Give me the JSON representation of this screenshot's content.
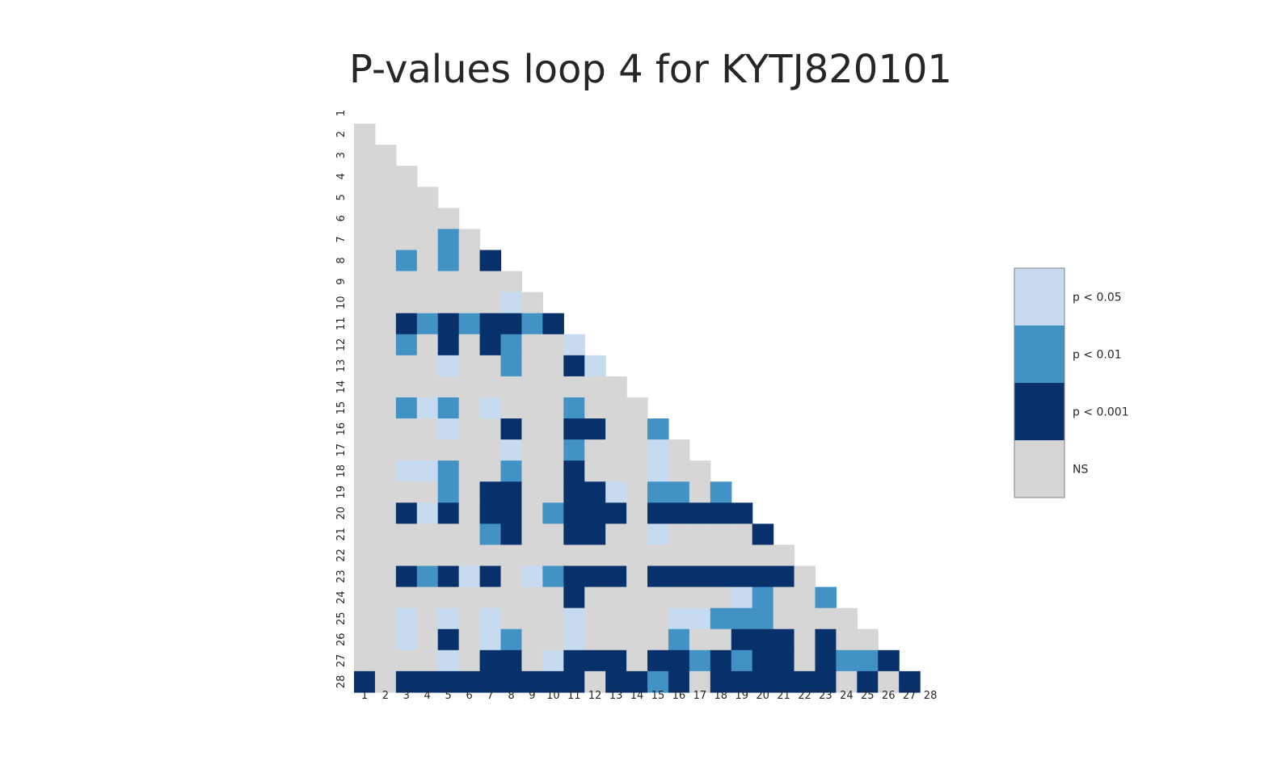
{
  "chart_data": {
    "type": "heatmap",
    "title": "P-values loop 4 for KYTJ820101",
    "xlabel": "",
    "ylabel": "",
    "x_ticks": [
      "1",
      "2",
      "3",
      "4",
      "5",
      "6",
      "7",
      "8",
      "9",
      "10",
      "11",
      "12",
      "13",
      "14",
      "15",
      "16",
      "17",
      "18",
      "19",
      "20",
      "21",
      "22",
      "23",
      "24",
      "25",
      "26",
      "27",
      "28"
    ],
    "y_ticks": [
      "1",
      "2",
      "3",
      "4",
      "5",
      "6",
      "7",
      "8",
      "9",
      "10",
      "11",
      "12",
      "13",
      "14",
      "15",
      "16",
      "17",
      "18",
      "19",
      "20",
      "21",
      "22",
      "23",
      "24",
      "25",
      "26",
      "27",
      "28"
    ],
    "grid": false,
    "legend_position": "right",
    "categories": [
      {
        "level": 0,
        "label": "NS",
        "color": "#d6d6d6"
      },
      {
        "level": 1,
        "label": "p < 0.05",
        "color": "#c6dbef"
      },
      {
        "level": 2,
        "label": "p < 0.01",
        "color": "#4292c6"
      },
      {
        "level": 3,
        "label": "p < 0.001",
        "color": "#08306b"
      }
    ],
    "legend_order": [
      1,
      2,
      3,
      0
    ],
    "matrix_lower_triangle": [
      [],
      [
        0
      ],
      [
        0,
        0
      ],
      [
        0,
        0,
        0
      ],
      [
        0,
        0,
        0,
        0
      ],
      [
        0,
        0,
        0,
        0,
        0
      ],
      [
        0,
        0,
        0,
        0,
        2,
        0
      ],
      [
        0,
        0,
        2,
        0,
        2,
        0,
        3
      ],
      [
        0,
        0,
        0,
        0,
        0,
        0,
        0,
        0
      ],
      [
        0,
        0,
        0,
        0,
        0,
        0,
        0,
        1,
        0
      ],
      [
        0,
        0,
        3,
        2,
        3,
        2,
        3,
        3,
        2,
        3
      ],
      [
        0,
        0,
        2,
        0,
        3,
        0,
        3,
        2,
        0,
        0,
        1
      ],
      [
        0,
        0,
        0,
        0,
        1,
        0,
        0,
        2,
        0,
        0,
        3,
        1
      ],
      [
        0,
        0,
        0,
        0,
        0,
        0,
        0,
        0,
        0,
        0,
        0,
        0,
        0
      ],
      [
        0,
        0,
        2,
        1,
        2,
        0,
        1,
        0,
        0,
        0,
        2,
        0,
        0,
        0
      ],
      [
        0,
        0,
        0,
        0,
        1,
        0,
        0,
        3,
        0,
        0,
        3,
        3,
        0,
        0,
        2
      ],
      [
        0,
        0,
        0,
        0,
        0,
        0,
        0,
        1,
        0,
        0,
        2,
        0,
        0,
        0,
        1,
        0
      ],
      [
        0,
        0,
        1,
        1,
        2,
        0,
        0,
        2,
        0,
        0,
        3,
        0,
        0,
        0,
        1,
        0,
        0
      ],
      [
        0,
        0,
        0,
        0,
        2,
        0,
        3,
        3,
        0,
        0,
        3,
        3,
        1,
        0,
        2,
        2,
        0,
        2
      ],
      [
        0,
        0,
        3,
        1,
        3,
        0,
        3,
        3,
        0,
        2,
        3,
        3,
        3,
        0,
        3,
        3,
        3,
        3,
        3
      ],
      [
        0,
        0,
        0,
        0,
        0,
        0,
        2,
        3,
        0,
        0,
        3,
        3,
        0,
        0,
        1,
        0,
        0,
        0,
        0,
        3
      ],
      [
        0,
        0,
        0,
        0,
        0,
        0,
        0,
        0,
        0,
        0,
        0,
        0,
        0,
        0,
        0,
        0,
        0,
        0,
        0,
        0,
        0
      ],
      [
        0,
        0,
        3,
        2,
        3,
        1,
        3,
        0,
        1,
        2,
        3,
        3,
        3,
        0,
        3,
        3,
        3,
        3,
        3,
        3,
        3,
        0
      ],
      [
        0,
        0,
        0,
        0,
        0,
        0,
        0,
        0,
        0,
        0,
        3,
        0,
        0,
        0,
        0,
        0,
        0,
        0,
        1,
        2,
        0,
        0,
        2
      ],
      [
        0,
        0,
        1,
        0,
        1,
        0,
        1,
        0,
        0,
        0,
        1,
        0,
        0,
        0,
        0,
        1,
        1,
        2,
        2,
        2,
        0,
        0,
        0,
        0
      ],
      [
        0,
        0,
        1,
        0,
        3,
        0,
        1,
        2,
        0,
        0,
        1,
        0,
        0,
        0,
        0,
        2,
        0,
        0,
        3,
        3,
        3,
        0,
        3,
        0,
        0
      ],
      [
        0,
        0,
        0,
        0,
        1,
        0,
        3,
        3,
        0,
        1,
        3,
        3,
        3,
        0,
        3,
        3,
        2,
        3,
        2,
        3,
        3,
        0,
        3,
        2,
        2,
        3
      ],
      [
        3,
        0,
        3,
        3,
        3,
        3,
        3,
        3,
        3,
        3,
        3,
        0,
        3,
        3,
        2,
        3,
        0,
        3,
        3,
        3,
        3,
        3,
        3,
        0,
        3,
        0,
        3
      ]
    ]
  }
}
